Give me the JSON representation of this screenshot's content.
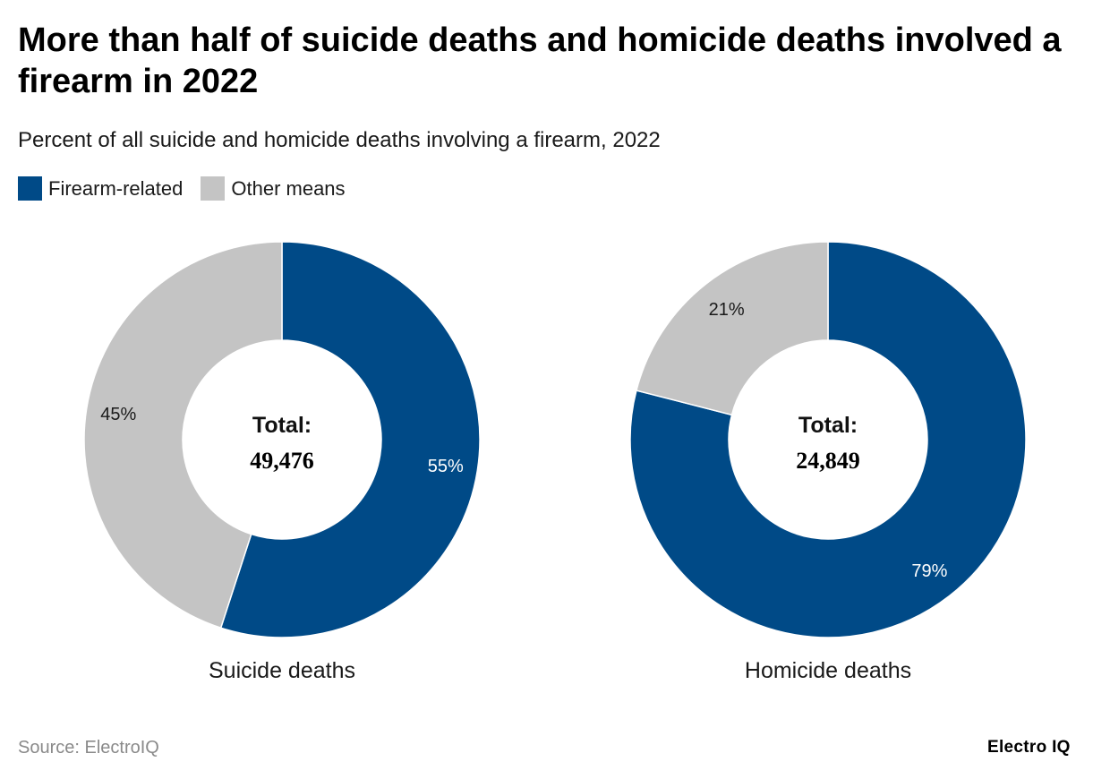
{
  "title": "More than half of suicide deaths and homicide deaths involved a firearm in 2022",
  "subtitle": "Percent of all suicide and homicide deaths involving a firearm, 2022",
  "legend": [
    {
      "label": "Firearm-related",
      "color": "#004a87"
    },
    {
      "label": "Other means",
      "color": "#c4c4c4"
    }
  ],
  "chart_data": [
    {
      "type": "pie",
      "variant": "donut",
      "title": "Suicide deaths",
      "center_label": "Total:",
      "center_value": "49,476",
      "slices": [
        {
          "label": "Firearm-related",
          "value": 55,
          "display": "55%",
          "color": "#004a87"
        },
        {
          "label": "Other means",
          "value": 45,
          "display": "45%",
          "color": "#c4c4c4"
        }
      ]
    },
    {
      "type": "pie",
      "variant": "donut",
      "title": "Homicide deaths",
      "center_label": "Total:",
      "center_value": "24,849",
      "slices": [
        {
          "label": "Firearm-related",
          "value": 79,
          "display": "79%",
          "color": "#004a87"
        },
        {
          "label": "Other means",
          "value": 21,
          "display": "21%",
          "color": "#c4c4c4"
        }
      ]
    }
  ],
  "source": "Source: ElectroIQ",
  "brand": "Electro IQ"
}
